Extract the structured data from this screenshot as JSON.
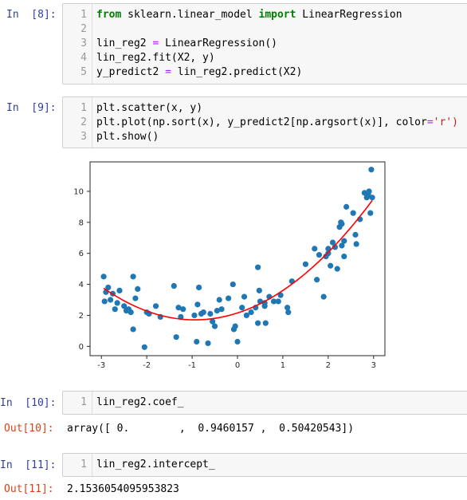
{
  "cells": [
    {
      "prompt": "In  [8]:",
      "line_numbers": [
        "1",
        "2",
        "3",
        "4",
        "5"
      ],
      "lines": [
        [
          {
            "t": "from",
            "c": "kw"
          },
          {
            "t": " sklearn.linear_model ",
            "c": ""
          },
          {
            "t": "import",
            "c": "kw"
          },
          {
            "t": " LinearRegression",
            "c": ""
          }
        ],
        [],
        [
          {
            "t": "lin_reg2 ",
            "c": ""
          },
          {
            "t": "=",
            "c": "op"
          },
          {
            "t": " LinearRegression()",
            "c": ""
          }
        ],
        [
          {
            "t": "lin_reg2.fit(X2, y)",
            "c": ""
          }
        ],
        [
          {
            "t": "y_predict2 ",
            "c": ""
          },
          {
            "t": "=",
            "c": "op"
          },
          {
            "t": " lin_reg2.predict(X2)",
            "c": ""
          }
        ]
      ]
    },
    {
      "prompt": "In  [9]:",
      "line_numbers": [
        "1",
        "2",
        "3"
      ],
      "lines": [
        [
          {
            "t": "plt.scatter(x, y)",
            "c": ""
          }
        ],
        [
          {
            "t": "plt.plot(np.sort(x), y_predict2[np.argsort(x)], color",
            "c": ""
          },
          {
            "t": "=",
            "c": "op"
          },
          {
            "t": "'r')",
            "c": "str"
          }
        ],
        [
          {
            "t": "plt.show()",
            "c": ""
          }
        ]
      ]
    },
    {
      "prompt": "In  [10]:",
      "line_numbers": [
        "1"
      ],
      "lines": [
        [
          {
            "t": "lin_reg2.coef_",
            "c": ""
          }
        ]
      ],
      "out_prompt": "Out[10]:",
      "output": "array([ 0.        ,  0.9460157 ,  0.50420543])"
    },
    {
      "prompt": "In  [11]:",
      "line_numbers": [
        "1"
      ],
      "lines": [
        [
          {
            "t": "lin_reg2.intercept_",
            "c": ""
          }
        ]
      ],
      "out_prompt": "Out[11]:",
      "output": "2.1536054095953823"
    }
  ],
  "colors": {
    "scatter": "#1f77b4",
    "line": "#ff0000",
    "prompt_in": "#303f9f",
    "prompt_out": "#d84315"
  },
  "chart_data": {
    "type": "scatter",
    "xlim": [
      -3.25,
      3.25
    ],
    "ylim": [
      -0.6,
      11.9
    ],
    "xticks": [
      "-3",
      "-2",
      "-1",
      "0",
      "1",
      "2",
      "3"
    ],
    "yticks": [
      "0",
      "2",
      "4",
      "6",
      "8",
      "10"
    ],
    "grid": false,
    "series": [
      {
        "type": "scatter",
        "color": "#1f77b4",
        "points": [
          [
            -2.95,
            4.5
          ],
          [
            -2.93,
            2.9
          ],
          [
            -2.9,
            3.5
          ],
          [
            -2.85,
            3.8
          ],
          [
            -2.8,
            3.0
          ],
          [
            -2.75,
            3.4
          ],
          [
            -2.7,
            2.4
          ],
          [
            -2.65,
            2.8
          ],
          [
            -2.6,
            3.6
          ],
          [
            -2.5,
            2.6
          ],
          [
            -2.45,
            2.3
          ],
          [
            -2.4,
            2.4
          ],
          [
            -2.35,
            2.2
          ],
          [
            -2.3,
            4.5
          ],
          [
            -2.25,
            3.1
          ],
          [
            -2.3,
            1.1
          ],
          [
            -2.2,
            3.7
          ],
          [
            -2.05,
            -0.05
          ],
          [
            -2.0,
            2.2
          ],
          [
            -1.95,
            2.1
          ],
          [
            -1.8,
            2.6
          ],
          [
            -1.7,
            1.9
          ],
          [
            -1.4,
            3.9
          ],
          [
            -1.35,
            0.6
          ],
          [
            -1.3,
            2.5
          ],
          [
            -1.25,
            1.9
          ],
          [
            -1.2,
            2.4
          ],
          [
            -0.95,
            2.0
          ],
          [
            -0.9,
            0.3
          ],
          [
            -0.88,
            2.7
          ],
          [
            -0.85,
            3.8
          ],
          [
            -0.8,
            2.1
          ],
          [
            -0.75,
            2.2
          ],
          [
            -0.65,
            0.2
          ],
          [
            -0.6,
            2.1
          ],
          [
            -0.55,
            1.6
          ],
          [
            -0.5,
            1.3
          ],
          [
            -0.45,
            2.3
          ],
          [
            -0.4,
            3.0
          ],
          [
            -0.35,
            2.4
          ],
          [
            -0.2,
            3.1
          ],
          [
            -0.1,
            4.0
          ],
          [
            -0.08,
            1.1
          ],
          [
            -0.05,
            1.3
          ],
          [
            0.0,
            0.3
          ],
          [
            0.1,
            2.5
          ],
          [
            0.15,
            3.2
          ],
          [
            0.2,
            2.0
          ],
          [
            0.3,
            2.2
          ],
          [
            0.4,
            2.5
          ],
          [
            0.45,
            5.1
          ],
          [
            0.48,
            3.6
          ],
          [
            0.5,
            2.9
          ],
          [
            0.45,
            1.5
          ],
          [
            0.6,
            2.8
          ],
          [
            0.62,
            1.5
          ],
          [
            0.6,
            2.6
          ],
          [
            0.7,
            3.2
          ],
          [
            0.8,
            2.9
          ],
          [
            0.9,
            2.9
          ],
          [
            0.95,
            3.3
          ],
          [
            1.1,
            2.5
          ],
          [
            1.12,
            2.2
          ],
          [
            1.2,
            4.2
          ],
          [
            1.5,
            5.3
          ],
          [
            1.7,
            6.3
          ],
          [
            1.75,
            4.3
          ],
          [
            1.8,
            5.9
          ],
          [
            1.9,
            3.2
          ],
          [
            1.95,
            5.8
          ],
          [
            2.0,
            6.3
          ],
          [
            2.0,
            6.0
          ],
          [
            2.05,
            5.2
          ],
          [
            2.1,
            6.7
          ],
          [
            2.15,
            6.4
          ],
          [
            2.2,
            5.0
          ],
          [
            2.25,
            7.7
          ],
          [
            2.28,
            8.0
          ],
          [
            2.3,
            7.9
          ],
          [
            2.3,
            6.5
          ],
          [
            2.35,
            6.8
          ],
          [
            2.35,
            5.8
          ],
          [
            2.4,
            9.0
          ],
          [
            2.55,
            8.6
          ],
          [
            2.6,
            7.2
          ],
          [
            2.62,
            6.6
          ],
          [
            2.7,
            8.2
          ],
          [
            2.8,
            9.9
          ],
          [
            2.85,
            9.6
          ],
          [
            2.88,
            9.8
          ],
          [
            2.9,
            10.0
          ],
          [
            2.93,
            8.6
          ],
          [
            2.95,
            11.4
          ],
          [
            2.97,
            9.6
          ]
        ]
      },
      {
        "type": "line",
        "color": "#ff0000",
        "fit": {
          "intercept": 2.1536054095953823,
          "coef": [
            0.0,
            0.9460157,
            0.50420543
          ]
        }
      }
    ]
  }
}
